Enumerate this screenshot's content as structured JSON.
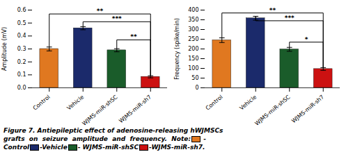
{
  "chart_data": [
    {
      "type": "bar",
      "categories": [
        "Control",
        "Vehicle",
        "WJMS-miR-shSC",
        "WJMS-miR-sh7"
      ],
      "values": [
        0.3,
        0.46,
        0.29,
        0.085
      ],
      "errors": [
        0.015,
        0.012,
        0.012,
        0.008
      ],
      "colors": [
        "#E07820",
        "#1B2A6B",
        "#1A5C2A",
        "#CC1111"
      ],
      "ylabel": "Amplitude (mV)",
      "ylim": [
        0,
        0.6
      ],
      "yticks": [
        {
          "value": 0,
          "label": "0.0"
        },
        0.1,
        0.2,
        0.3,
        0.4,
        0.5,
        0.6
      ],
      "annotations": [
        {
          "text": "**",
          "from": "Control",
          "to": "WJMS-miR-sh7",
          "y": 0.57,
          "from_bottom": 0.315,
          "to_bottom": 0.093
        },
        {
          "text": "***",
          "from": "Vehicle",
          "to": "WJMS-miR-sh7",
          "y": 0.51,
          "from_bottom": 0.472,
          "to_bottom": 0.093
        },
        {
          "text": "**",
          "from": "WJMS-miR-shSC",
          "to": "WJMS-miR-sh7",
          "y": 0.37,
          "from_bottom": 0.302,
          "to_bottom": 0.093
        }
      ]
    },
    {
      "type": "bar",
      "categories": [
        "Control",
        "Vehicle",
        "WJMS-miR-shSC",
        "WJMS-miR-sh7"
      ],
      "values": [
        245,
        358,
        198,
        97
      ],
      "errors": [
        12,
        10,
        10,
        7
      ],
      "colors": [
        "#E07820",
        "#1B2A6B",
        "#1A5C2A",
        "#CC1111"
      ],
      "ylabel": "Frequency (spike/min)",
      "ylim": [
        0,
        400
      ],
      "yticks": [
        0,
        50,
        100,
        150,
        200,
        250,
        300,
        350,
        400
      ],
      "annotations": [
        {
          "text": "**",
          "from": "Control",
          "to": "WJMS-miR-sh7",
          "y": 385,
          "from_bottom": 257,
          "to_bottom": 104
        },
        {
          "text": "***",
          "from": "Vehicle",
          "to": "WJMS-miR-sh7",
          "y": 345,
          "from_bottom": 368,
          "to_bottom": 104
        },
        {
          "text": "*",
          "from": "WJMS-miR-shSC",
          "to": "WJMS-miR-sh7",
          "y": 235,
          "from_bottom": 208,
          "to_bottom": 104
        }
      ]
    }
  ],
  "caption": [
    [
      {
        "text": "Figure 7. Antiepileptic effect of adenosine-releasing hWJMSCs"
      }
    ],
    [
      {
        "text": "grafts  on  seizure  amplitude  and  frequency.  Note:"
      },
      {
        "color": "#E07820"
      },
      {
        "text": " -"
      }
    ],
    [
      {
        "text": "Control"
      },
      {
        "color": "#1B2A6B"
      },
      {
        "text": "-Vehicle"
      },
      {
        "color": "#1A5C2A"
      },
      {
        "text": "- WJMS-miR-shSC"
      },
      {
        "color": "#CC1111"
      },
      {
        "text": "-WJMS-miR-sh7."
      }
    ]
  ]
}
